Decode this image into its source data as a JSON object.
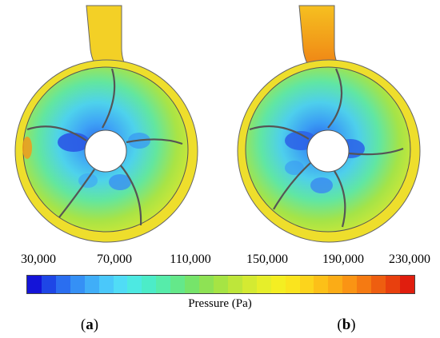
{
  "panels": [
    {
      "id": "a",
      "label_open": "(",
      "label_letter": "a",
      "label_close": ")"
    },
    {
      "id": "b",
      "label_open": "(",
      "label_letter": "b",
      "label_close": ")"
    }
  ],
  "colorbar": {
    "title": "Pressure (Pa)",
    "ticks": [
      "30,000",
      "70,000",
      "110,000",
      "150,000",
      "190,000",
      "230,000"
    ],
    "colors": [
      "#1414d8",
      "#1e46e6",
      "#2a6ef0",
      "#3590f5",
      "#40aef8",
      "#4ac8fa",
      "#50dcf6",
      "#4de9e2",
      "#4cecc8",
      "#56ecaa",
      "#64e88a",
      "#76e46a",
      "#8ee254",
      "#a6e444",
      "#bee63a",
      "#d4ea32",
      "#e6ee2a",
      "#f4ee22",
      "#fae41e",
      "#fcd41c",
      "#fcc018",
      "#fbac16",
      "#fa9414",
      "#f57a12",
      "#ee5e10",
      "#e8400e",
      "#e01e0e"
    ]
  }
}
